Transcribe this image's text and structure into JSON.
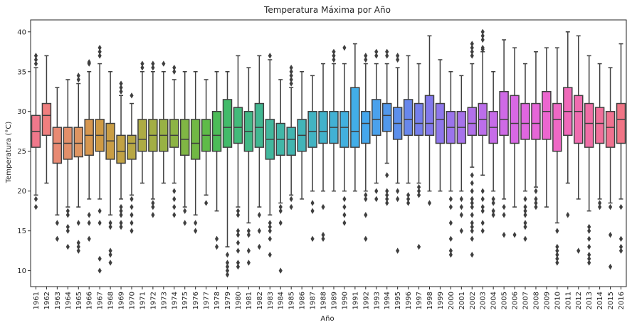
{
  "chart_data": {
    "type": "boxplot",
    "title": "Temperatura Máxima por Año",
    "xlabel": "Año",
    "ylabel": "Temperatura (°C)",
    "ylim": [
      8,
      41.5
    ],
    "yticks": [
      10,
      15,
      20,
      25,
      30,
      35,
      40
    ],
    "grid": false,
    "legend": "none",
    "boxes": [
      {
        "category": "1961",
        "q1": 25.5,
        "median": 27.5,
        "q3": 29.5,
        "whisker_low": 19.5,
        "whisker_high": 35.5,
        "outliers": [
          37,
          36.5,
          36,
          19,
          18
        ],
        "color": "#f0788b"
      },
      {
        "category": "1962",
        "q1": 27,
        "median": 29.5,
        "q3": 31,
        "whisker_low": 21,
        "whisker_high": 37,
        "outliers": [],
        "color": "#f07f7f"
      },
      {
        "category": "1963",
        "q1": 23.5,
        "median": 26,
        "q3": 28,
        "whisker_low": 17,
        "whisker_high": 33,
        "outliers": [
          16,
          14
        ],
        "color": "#e88a73"
      },
      {
        "category": "1964",
        "q1": 24,
        "median": 26,
        "q3": 28,
        "whisker_low": 18,
        "whisker_high": 34,
        "outliers": [
          17.5,
          17,
          15.5,
          15,
          13
        ],
        "color": "#e28f6a"
      },
      {
        "category": "1965",
        "q1": 24.3,
        "median": 26,
        "q3": 28,
        "whisker_low": 18,
        "whisker_high": 33.5,
        "outliers": [
          34.5,
          34,
          16,
          13.5,
          13,
          12.5
        ],
        "color": "#de9562"
      },
      {
        "category": "1966",
        "q1": 24.5,
        "median": 27,
        "q3": 29,
        "whisker_low": 19,
        "whisker_high": 35,
        "outliers": [
          36.2,
          36,
          17,
          16,
          14
        ],
        "color": "#d7974f"
      },
      {
        "category": "1967",
        "q1": 25,
        "median": 27,
        "q3": 29,
        "whisker_low": 19,
        "whisker_high": 36,
        "outliers": [
          38,
          37.5,
          37,
          17.5,
          16,
          11.5,
          10
        ],
        "color": "#cf9a44"
      },
      {
        "category": "1968",
        "q1": 24,
        "median": 26.3,
        "q3": 28.5,
        "whisker_low": 17,
        "whisker_high": 35,
        "outliers": [
          16,
          15.5,
          12.5,
          12,
          11
        ],
        "color": "#c99d44"
      },
      {
        "category": "1969",
        "q1": 23.5,
        "median": 25,
        "q3": 27,
        "whisker_low": 19,
        "whisker_high": 32,
        "outliers": [
          33.5,
          33,
          32.5,
          18,
          17.5,
          17,
          16,
          15.5
        ],
        "color": "#c2a244"
      },
      {
        "category": "1970",
        "q1": 24,
        "median": 26,
        "q3": 27,
        "whisker_low": 19.5,
        "whisker_high": 31,
        "outliers": [
          32,
          19,
          18,
          17,
          16,
          15
        ],
        "color": "#b8a744"
      },
      {
        "category": "1971",
        "q1": 25,
        "median": 26.5,
        "q3": 29,
        "whisker_low": 21,
        "whisker_high": 35,
        "outliers": [
          36,
          35.5
        ],
        "color": "#adab44"
      },
      {
        "category": "1972",
        "q1": 25,
        "median": 27,
        "q3": 29,
        "whisker_low": 19,
        "whisker_high": 35,
        "outliers": [
          36,
          35.5,
          18.5,
          18,
          17
        ],
        "color": "#a3ae44"
      },
      {
        "category": "1973",
        "q1": 25,
        "median": 27,
        "q3": 29,
        "whisker_low": 21,
        "whisker_high": 35,
        "outliers": [
          36
        ],
        "color": "#98b244"
      },
      {
        "category": "1974",
        "q1": 25.5,
        "median": 27,
        "q3": 29,
        "whisker_low": 21,
        "whisker_high": 34,
        "outliers": [
          35.5,
          35,
          20,
          19,
          18,
          17
        ],
        "color": "#8db444"
      },
      {
        "category": "1975",
        "q1": 24.5,
        "median": 26.5,
        "q3": 29,
        "whisker_low": 18,
        "whisker_high": 35,
        "outliers": [
          17.5,
          16
        ],
        "color": "#80b644"
      },
      {
        "category": "1976",
        "q1": 24,
        "median": 26,
        "q3": 29,
        "whisker_low": 17,
        "whisker_high": 35,
        "outliers": [
          16,
          15
        ],
        "color": "#71b844"
      },
      {
        "category": "1977",
        "q1": 25,
        "median": 27,
        "q3": 29,
        "whisker_low": 19.5,
        "whisker_high": 34,
        "outliers": [
          18.5
        ],
        "color": "#5fbb49"
      },
      {
        "category": "1978",
        "q1": 25,
        "median": 27,
        "q3": 30,
        "whisker_low": 17.5,
        "whisker_high": 35,
        "outliers": [
          14,
          13
        ],
        "color": "#4cbc58"
      },
      {
        "category": "1979",
        "q1": 25.5,
        "median": 28,
        "q3": 31.5,
        "whisker_low": 13,
        "whisker_high": 35,
        "outliers": [
          12,
          11,
          10.5,
          10,
          9.5
        ],
        "color": "#42bb6a"
      },
      {
        "category": "1980",
        "q1": 26,
        "median": 28,
        "q3": 30.5,
        "whisker_low": 18,
        "whisker_high": 37,
        "outliers": [
          17.5,
          17,
          15,
          14.5,
          13.5,
          12.5,
          11,
          10.5
        ],
        "color": "#42ba7a"
      },
      {
        "category": "1981",
        "q1": 25,
        "median": 27.5,
        "q3": 30,
        "whisker_low": 16,
        "whisker_high": 35.5,
        "outliers": [
          15,
          14.5,
          12.5,
          11
        ],
        "color": "#42b986"
      },
      {
        "category": "1982",
        "q1": 25.5,
        "median": 28,
        "q3": 31,
        "whisker_low": 18,
        "whisker_high": 37,
        "outliers": [
          17,
          15,
          13
        ],
        "color": "#42b892"
      },
      {
        "category": "1983",
        "q1": 24,
        "median": 26.5,
        "q3": 29,
        "whisker_low": 17,
        "whisker_high": 36.5,
        "outliers": [
          37,
          16,
          15.5,
          15,
          14,
          12
        ],
        "color": "#42b79d"
      },
      {
        "category": "1984",
        "q1": 24.5,
        "median": 26.5,
        "q3": 28.5,
        "whisker_low": 18.5,
        "whisker_high": 34,
        "outliers": [
          18,
          17.5,
          16,
          10
        ],
        "color": "#42b6a7"
      },
      {
        "category": "1985",
        "q1": 24.5,
        "median": 26.5,
        "q3": 28,
        "whisker_low": 19.5,
        "whisker_high": 33,
        "outliers": [
          35.5,
          35,
          34.5,
          34,
          33.5,
          19,
          18
        ],
        "color": "#42b5b0"
      },
      {
        "category": "1986",
        "q1": 25,
        "median": 27,
        "q3": 29,
        "whisker_low": 19,
        "whisker_high": 35,
        "outliers": [],
        "color": "#42b4b9"
      },
      {
        "category": "1987",
        "q1": 25.5,
        "median": 27.5,
        "q3": 30,
        "whisker_low": 20,
        "whisker_high": 34.5,
        "outliers": [
          18.5,
          17.5,
          14
        ],
        "color": "#42b3c2"
      },
      {
        "category": "1988",
        "q1": 26,
        "median": 27.5,
        "q3": 30,
        "whisker_low": 20,
        "whisker_high": 36,
        "outliers": [
          18,
          14.5,
          14
        ],
        "color": "#42b2cb"
      },
      {
        "category": "1989",
        "q1": 26,
        "median": 28,
        "q3": 30,
        "whisker_low": 20,
        "whisker_high": 36,
        "outliers": [
          37.5,
          37,
          36.5
        ],
        "color": "#42b1d4"
      },
      {
        "category": "1990",
        "q1": 25.5,
        "median": 28,
        "q3": 30,
        "whisker_low": 20,
        "whisker_high": 36,
        "outliers": [
          38,
          19,
          18,
          17,
          16
        ],
        "color": "#42b0de"
      },
      {
        "category": "1991",
        "q1": 25.5,
        "median": 27.5,
        "q3": 33,
        "whisker_low": 20,
        "whisker_high": 38.5,
        "outliers": [],
        "color": "#42aee8"
      },
      {
        "category": "1992",
        "q1": 26,
        "median": 28.5,
        "q3": 30,
        "whisker_low": 20,
        "whisker_high": 36,
        "outliers": [
          37,
          36.5,
          19.5,
          19,
          17,
          14
        ],
        "color": "#45a7ec"
      },
      {
        "category": "1993",
        "q1": 27,
        "median": 29,
        "q3": 31.5,
        "whisker_low": 21,
        "whisker_high": 36,
        "outliers": [
          37.5,
          37,
          20,
          19
        ],
        "color": "#4aa1ec"
      },
      {
        "category": "1994",
        "q1": 27.5,
        "median": 29.5,
        "q3": 31,
        "whisker_low": 23.5,
        "whisker_high": 36,
        "outliers": [
          37.5,
          37,
          22,
          20,
          19.5,
          19,
          18.5
        ],
        "color": "#5198ec"
      },
      {
        "category": "1995",
        "q1": 26.5,
        "median": 28.5,
        "q3": 30.5,
        "whisker_low": 21,
        "whisker_high": 35.5,
        "outliers": [
          37,
          36.5,
          20,
          19,
          12.5
        ],
        "color": "#5c8fec"
      },
      {
        "category": "1996",
        "q1": 27,
        "median": 29,
        "q3": 31.5,
        "whisker_low": 21,
        "whisker_high": 37,
        "outliers": [
          19.5,
          19,
          18.5
        ],
        "color": "#6887ec"
      },
      {
        "category": "1997",
        "q1": 27,
        "median": 28.5,
        "q3": 31,
        "whisker_low": 21,
        "whisker_high": 36,
        "outliers": [
          20.5,
          20,
          19.5,
          13
        ],
        "color": "#757fec"
      },
      {
        "category": "1998",
        "q1": 27,
        "median": 28.5,
        "q3": 32,
        "whisker_low": 20,
        "whisker_high": 39.5,
        "outliers": [
          18.5
        ],
        "color": "#8279ec"
      },
      {
        "category": "1999",
        "q1": 26,
        "median": 29,
        "q3": 31,
        "whisker_low": 20,
        "whisker_high": 36.5,
        "outliers": [],
        "color": "#8e76ec"
      },
      {
        "category": "2000",
        "q1": 26,
        "median": 28,
        "q3": 30,
        "whisker_low": 20,
        "whisker_high": 35,
        "outliers": [
          19,
          18,
          16,
          14,
          12.5,
          12
        ],
        "color": "#9b74ec"
      },
      {
        "category": "2001",
        "q1": 26,
        "median": 28,
        "q3": 30,
        "whisker_low": 20,
        "whisker_high": 34.5,
        "outliers": [
          19,
          18,
          17,
          15
        ],
        "color": "#a772eb"
      },
      {
        "category": "2002",
        "q1": 27,
        "median": 28.5,
        "q3": 30.5,
        "whisker_low": 23,
        "whisker_high": 36,
        "outliers": [
          38.5,
          38,
          37.5,
          37,
          22,
          21,
          20,
          19,
          18.5,
          18,
          17,
          16,
          15.5,
          15,
          14,
          12
        ],
        "color": "#b270ea"
      },
      {
        "category": "2003",
        "q1": 27,
        "median": 29,
        "q3": 31,
        "whisker_low": 22,
        "whisker_high": 37.5,
        "outliers": [
          40,
          39.5,
          39,
          38,
          37.8,
          20,
          19,
          18,
          17.5,
          16,
          15
        ],
        "color": "#bc6eea"
      },
      {
        "category": "2004",
        "q1": 26,
        "median": 28,
        "q3": 30,
        "whisker_low": 20,
        "whisker_high": 35,
        "outliers": [
          19,
          18.5,
          17.5,
          17
        ],
        "color": "#c66ce8"
      },
      {
        "category": "2005",
        "q1": 27,
        "median": 29,
        "q3": 32.5,
        "whisker_low": 19,
        "whisker_high": 39,
        "outliers": [
          18,
          17,
          14.5
        ],
        "color": "#cf6ae6"
      },
      {
        "category": "2006",
        "q1": 26,
        "median": 28.5,
        "q3": 32,
        "whisker_low": 18,
        "whisker_high": 38,
        "outliers": [
          14.5
        ],
        "color": "#d868e4"
      },
      {
        "category": "2007",
        "q1": 26.5,
        "median": 28.5,
        "q3": 31,
        "whisker_low": 20,
        "whisker_high": 36,
        "outliers": [
          19,
          18,
          17.5,
          17,
          16,
          15.5,
          14
        ],
        "color": "#e066e0"
      },
      {
        "category": "2008",
        "q1": 26.5,
        "median": 28.5,
        "q3": 31,
        "whisker_low": 20.5,
        "whisker_high": 37.5,
        "outliers": [
          20,
          19,
          18.5,
          18
        ],
        "color": "#e666d8"
      },
      {
        "category": "2009",
        "q1": 26.5,
        "median": 30,
        "q3": 32.5,
        "whisker_low": 18,
        "whisker_high": 38,
        "outliers": [],
        "color": "#ec66cf"
      },
      {
        "category": "2010",
        "q1": 25,
        "median": 29,
        "q3": 31,
        "whisker_low": 16,
        "whisker_high": 38,
        "outliers": [
          15,
          13,
          12.5,
          12,
          11.5,
          11
        ],
        "color": "#ee68c5"
      },
      {
        "category": "2011",
        "q1": 27,
        "median": 30,
        "q3": 33,
        "whisker_low": 21,
        "whisker_high": 40,
        "outliers": [
          17
        ],
        "color": "#f06aba"
      },
      {
        "category": "2012",
        "q1": 26,
        "median": 30,
        "q3": 32,
        "whisker_low": 19,
        "whisker_high": 39.5,
        "outliers": [
          12.5
        ],
        "color": "#f06cb0"
      },
      {
        "category": "2013",
        "q1": 25.5,
        "median": 28.5,
        "q3": 31,
        "whisker_low": 17.5,
        "whisker_high": 37,
        "outliers": [
          15.5,
          15,
          14,
          13,
          12,
          11.5,
          11
        ],
        "color": "#f06ea6"
      },
      {
        "category": "2014",
        "q1": 26,
        "median": 28.5,
        "q3": 30.5,
        "whisker_low": 19,
        "whisker_high": 36,
        "outliers": [
          18.5,
          18
        ],
        "color": "#f0709b"
      },
      {
        "category": "2015",
        "q1": 25.5,
        "median": 28,
        "q3": 30,
        "whisker_low": 18.5,
        "whisker_high": 35.5,
        "outliers": [
          18,
          14.5,
          10.5
        ],
        "color": "#f07290"
      },
      {
        "category": "2016",
        "q1": 26,
        "median": 29,
        "q3": 31,
        "whisker_low": 19,
        "whisker_high": 38.5,
        "outliers": [
          18,
          14,
          13,
          12.5
        ],
        "color": "#f07485"
      }
    ]
  }
}
